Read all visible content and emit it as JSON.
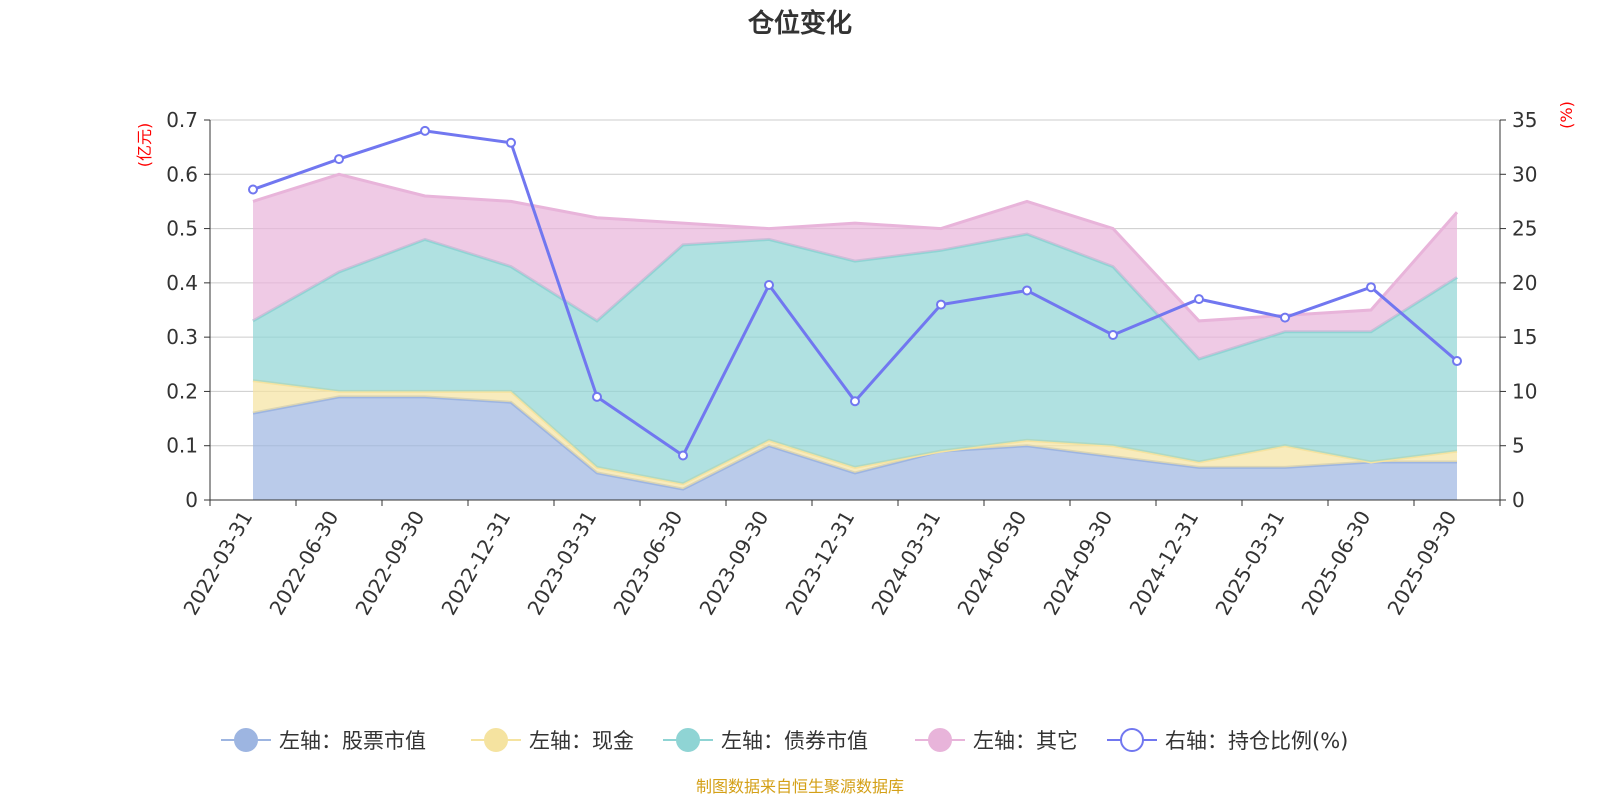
{
  "chart_data": {
    "type": "area",
    "title": "仓位变化",
    "left_axis_unit": "(亿元)",
    "right_axis_unit": "(%)",
    "categories": [
      "2022-03-31",
      "2022-06-30",
      "2022-09-30",
      "2022-12-31",
      "2023-03-31",
      "2023-06-30",
      "2023-09-30",
      "2023-12-31",
      "2024-03-31",
      "2024-06-30",
      "2024-09-30",
      "2024-12-31",
      "2025-03-31",
      "2025-06-30",
      "2025-09-30"
    ],
    "left_ylim": [
      0,
      0.7
    ],
    "left_ticks": [
      "0",
      "0.1",
      "0.2",
      "0.3",
      "0.4",
      "0.5",
      "0.6",
      "0.7"
    ],
    "right_ylim": [
      0,
      35
    ],
    "right_ticks": [
      "0",
      "5",
      "10",
      "15",
      "20",
      "25",
      "30",
      "35"
    ],
    "stacked_series": [
      {
        "name": "左轴：股票市值",
        "color": "#9db5e1",
        "values": [
          0.16,
          0.19,
          0.19,
          0.18,
          0.05,
          0.02,
          0.1,
          0.05,
          0.09,
          0.1,
          0.08,
          0.06,
          0.06,
          0.07,
          0.07
        ]
      },
      {
        "name": "左轴：现金",
        "color": "#f5e3a0",
        "values": [
          0.06,
          0.01,
          0.01,
          0.02,
          0.01,
          0.01,
          0.01,
          0.01,
          0.0,
          0.01,
          0.02,
          0.01,
          0.04,
          0.0,
          0.02
        ]
      },
      {
        "name": "左轴：债券市值",
        "color": "#8fd4d4",
        "values": [
          0.11,
          0.22,
          0.28,
          0.23,
          0.27,
          0.44,
          0.37,
          0.38,
          0.37,
          0.38,
          0.33,
          0.19,
          0.21,
          0.24,
          0.32
        ]
      },
      {
        "name": "左轴：其它",
        "color": "#e8b4da",
        "values": [
          0.22,
          0.18,
          0.08,
          0.12,
          0.19,
          0.04,
          0.02,
          0.07,
          0.04,
          0.06,
          0.07,
          0.07,
          0.03,
          0.04,
          0.12
        ]
      }
    ],
    "line_series": {
      "name": "右轴：持仓比例(%)",
      "color": "#7177f0",
      "values": [
        28.6,
        31.4,
        34.0,
        32.9,
        9.5,
        4.1,
        19.8,
        9.1,
        18.0,
        19.3,
        15.2,
        18.5,
        16.8,
        19.6,
        12.8
      ]
    },
    "legend_position": "bottom",
    "grid": true
  },
  "footer": {
    "source": "制图数据来自恒生聚源数据库"
  }
}
